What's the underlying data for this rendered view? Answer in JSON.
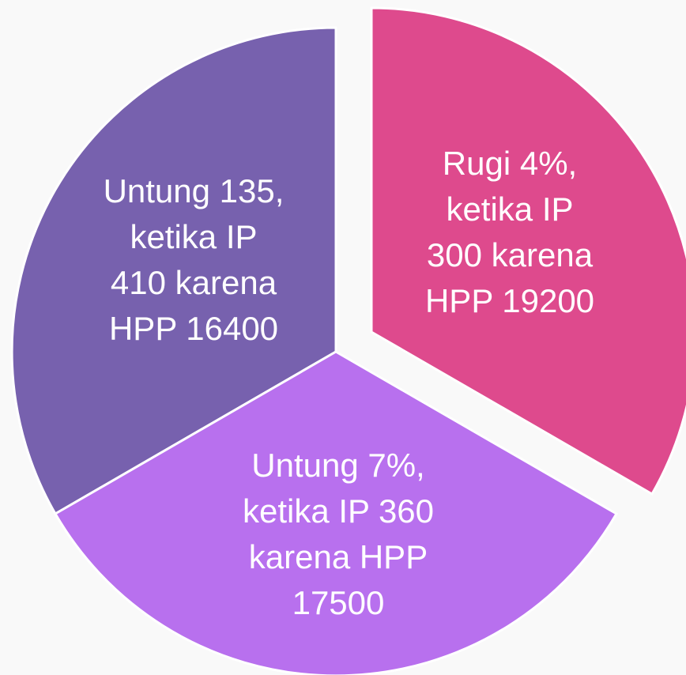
{
  "segments": [
    {
      "lines": [
        "Untung 135,",
        "ketika IP",
        "410 karena",
        "HPP 16400"
      ]
    },
    {
      "lines": [
        "Rugi 4%,",
        "ketika IP",
        "300 karena",
        "HPP 19200"
      ]
    },
    {
      "lines": [
        "Untung 7%,",
        "ketika IP 360",
        "karena HPP",
        "17500"
      ]
    }
  ]
}
